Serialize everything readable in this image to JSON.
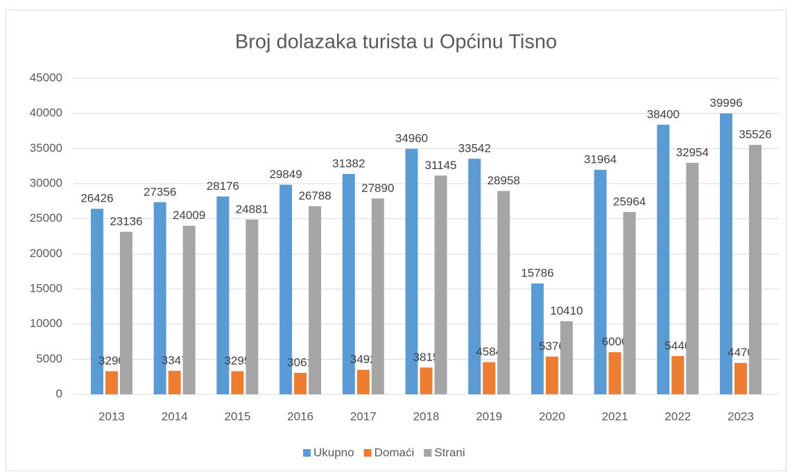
{
  "chart_data": {
    "type": "bar",
    "title": "Broj dolazaka turista u Općinu Tisno",
    "categories": [
      "2013",
      "2014",
      "2015",
      "2016",
      "2017",
      "2018",
      "2019",
      "2020",
      "2021",
      "2022",
      "2023"
    ],
    "series": [
      {
        "name": "Ukupno",
        "color": "#5b9bd5",
        "values": [
          26426,
          27356,
          28176,
          29849,
          31382,
          34960,
          33542,
          15786,
          31964,
          38400,
          39996
        ]
      },
      {
        "name": "Domaći",
        "color": "#ed7d31",
        "values": [
          3290,
          3347,
          3295,
          3061,
          3492,
          3815,
          4584,
          5376,
          6000,
          5446,
          4470
        ]
      },
      {
        "name": "Strani",
        "color": "#a5a5a5",
        "values": [
          23136,
          24009,
          24881,
          26788,
          27890,
          31145,
          28958,
          10410,
          25964,
          32954,
          35526
        ]
      }
    ],
    "ylim": [
      0,
      45000
    ],
    "yticks": [
      0,
      5000,
      10000,
      15000,
      20000,
      25000,
      30000,
      35000,
      40000,
      45000
    ],
    "grid": true,
    "legend": "bottom"
  }
}
